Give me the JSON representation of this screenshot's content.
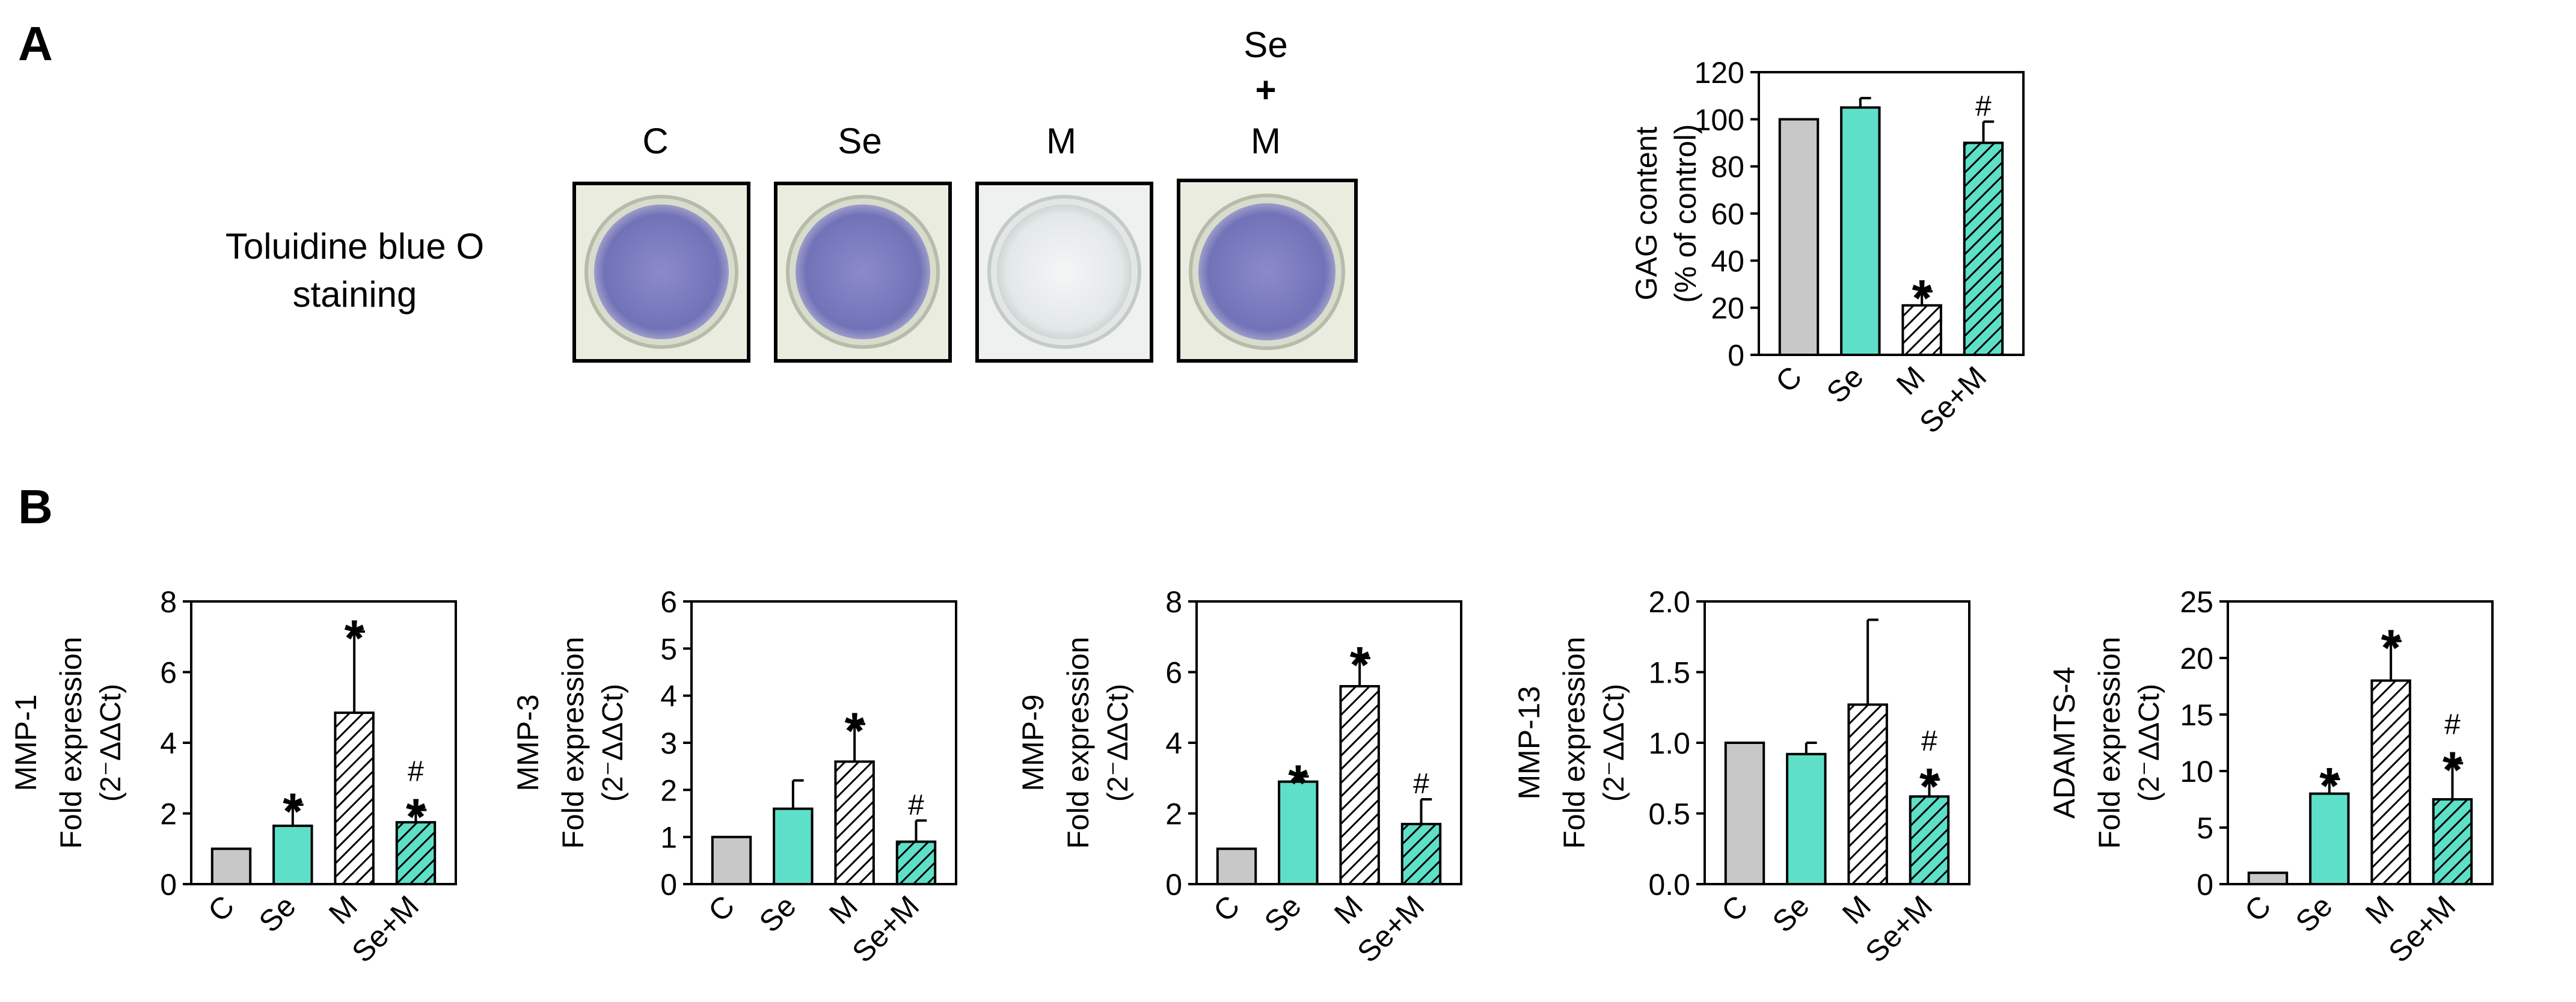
{
  "panel_a": {
    "label": "A",
    "staining_label_line1": "Toluidine blue O",
    "staining_label_line2": "staining",
    "wells": [
      {
        "name": "C",
        "stained": true
      },
      {
        "name": "Se",
        "stained": true
      },
      {
        "name": "M",
        "stained": false
      },
      {
        "name_line1": "Se",
        "name_line2": "+",
        "name_line3": "M",
        "stained": true
      }
    ]
  },
  "panel_b": {
    "label": "B"
  },
  "colors": {
    "control": "#c8c8c8",
    "selenium": "#5ee0c8",
    "mixed_hatch": "#ffffff",
    "stain_outer": "#a3a3c9",
    "stain_inner": "#7f7fc0",
    "unstained": "#e6ebeb"
  },
  "chart_data": [
    {
      "id": "gag",
      "type": "bar",
      "title": "",
      "ylabel_line1": "GAG content",
      "ylabel_line2": "(% of control)",
      "categories": [
        "C",
        "Se",
        "M",
        "Se+M"
      ],
      "values": [
        100,
        105,
        21,
        90
      ],
      "errors": [
        0,
        4,
        6,
        9
      ],
      "ylim": [
        0,
        120
      ],
      "yticks": [
        "0",
        "20",
        "40",
        "60",
        "80",
        "100",
        "120"
      ],
      "annotations": [
        "",
        "",
        "*",
        "#"
      ]
    },
    {
      "id": "mmp1",
      "type": "bar",
      "ylabel_gene": "MMP-1",
      "ylabel_line1": "Fold expression",
      "ylabel_line2": "(2⁻ΔΔCt)",
      "categories": [
        "C",
        "Se",
        "M",
        "Se+M"
      ],
      "values": [
        1.0,
        1.65,
        4.85,
        1.75
      ],
      "errors": [
        0,
        0.6,
        2.3,
        0.35
      ],
      "ylim": [
        0,
        8
      ],
      "yticks": [
        "0",
        "2",
        "4",
        "6",
        "8"
      ],
      "annotations": [
        "",
        "*",
        "*",
        "#*"
      ]
    },
    {
      "id": "mmp3",
      "type": "bar",
      "ylabel_gene": "MMP-3",
      "ylabel_line1": "Fold expression",
      "ylabel_line2": "(2⁻ΔΔCt)",
      "categories": [
        "C",
        "Se",
        "M",
        "Se+M"
      ],
      "values": [
        1.0,
        1.6,
        2.6,
        0.9
      ],
      "errors": [
        0,
        0.6,
        0.8,
        0.45
      ],
      "ylim": [
        0,
        6
      ],
      "yticks": [
        "0",
        "1",
        "2",
        "3",
        "4",
        "5",
        "6"
      ],
      "annotations": [
        "",
        "",
        "*",
        "#"
      ]
    },
    {
      "id": "mmp9",
      "type": "bar",
      "ylabel_gene": "MMP-9",
      "ylabel_line1": "Fold expression",
      "ylabel_line2": "(2⁻ΔΔCt)",
      "categories": [
        "C",
        "Se",
        "M",
        "Se+M"
      ],
      "values": [
        1.0,
        2.9,
        5.6,
        1.7
      ],
      "errors": [
        0,
        0.15,
        0.8,
        0.7
      ],
      "ylim": [
        0,
        8
      ],
      "yticks": [
        "0",
        "2",
        "4",
        "6",
        "8"
      ],
      "annotations": [
        "",
        "*",
        "*",
        "#"
      ]
    },
    {
      "id": "mmp13",
      "type": "bar",
      "ylabel_gene": "MMP-13",
      "ylabel_line1": "Fold expression",
      "ylabel_line2": "(2⁻ΔΔCt)",
      "categories": [
        "C",
        "Se",
        "M",
        "Se+M"
      ],
      "values": [
        1.0,
        0.92,
        1.27,
        0.62
      ],
      "errors": [
        0,
        0.08,
        0.6,
        0.12
      ],
      "ylim": [
        0,
        2.0
      ],
      "yticks": [
        "0.0",
        "0.5",
        "1.0",
        "1.5",
        "2.0"
      ],
      "annotations": [
        "",
        "",
        "",
        "#*"
      ]
    },
    {
      "id": "adamts4",
      "type": "bar",
      "ylabel_gene": "ADAMTS-4",
      "ylabel_line1": "Fold expression",
      "ylabel_line2": "(2⁻ΔΔCt)",
      "categories": [
        "C",
        "Se",
        "M",
        "Se+M"
      ],
      "values": [
        1.0,
        8.0,
        18.0,
        7.5
      ],
      "errors": [
        0,
        1.3,
        3.5,
        3.2
      ],
      "ylim": [
        0,
        25
      ],
      "yticks": [
        "0",
        "5",
        "10",
        "15",
        "20",
        "25"
      ],
      "annotations": [
        "",
        "*",
        "*",
        "#*"
      ]
    }
  ]
}
